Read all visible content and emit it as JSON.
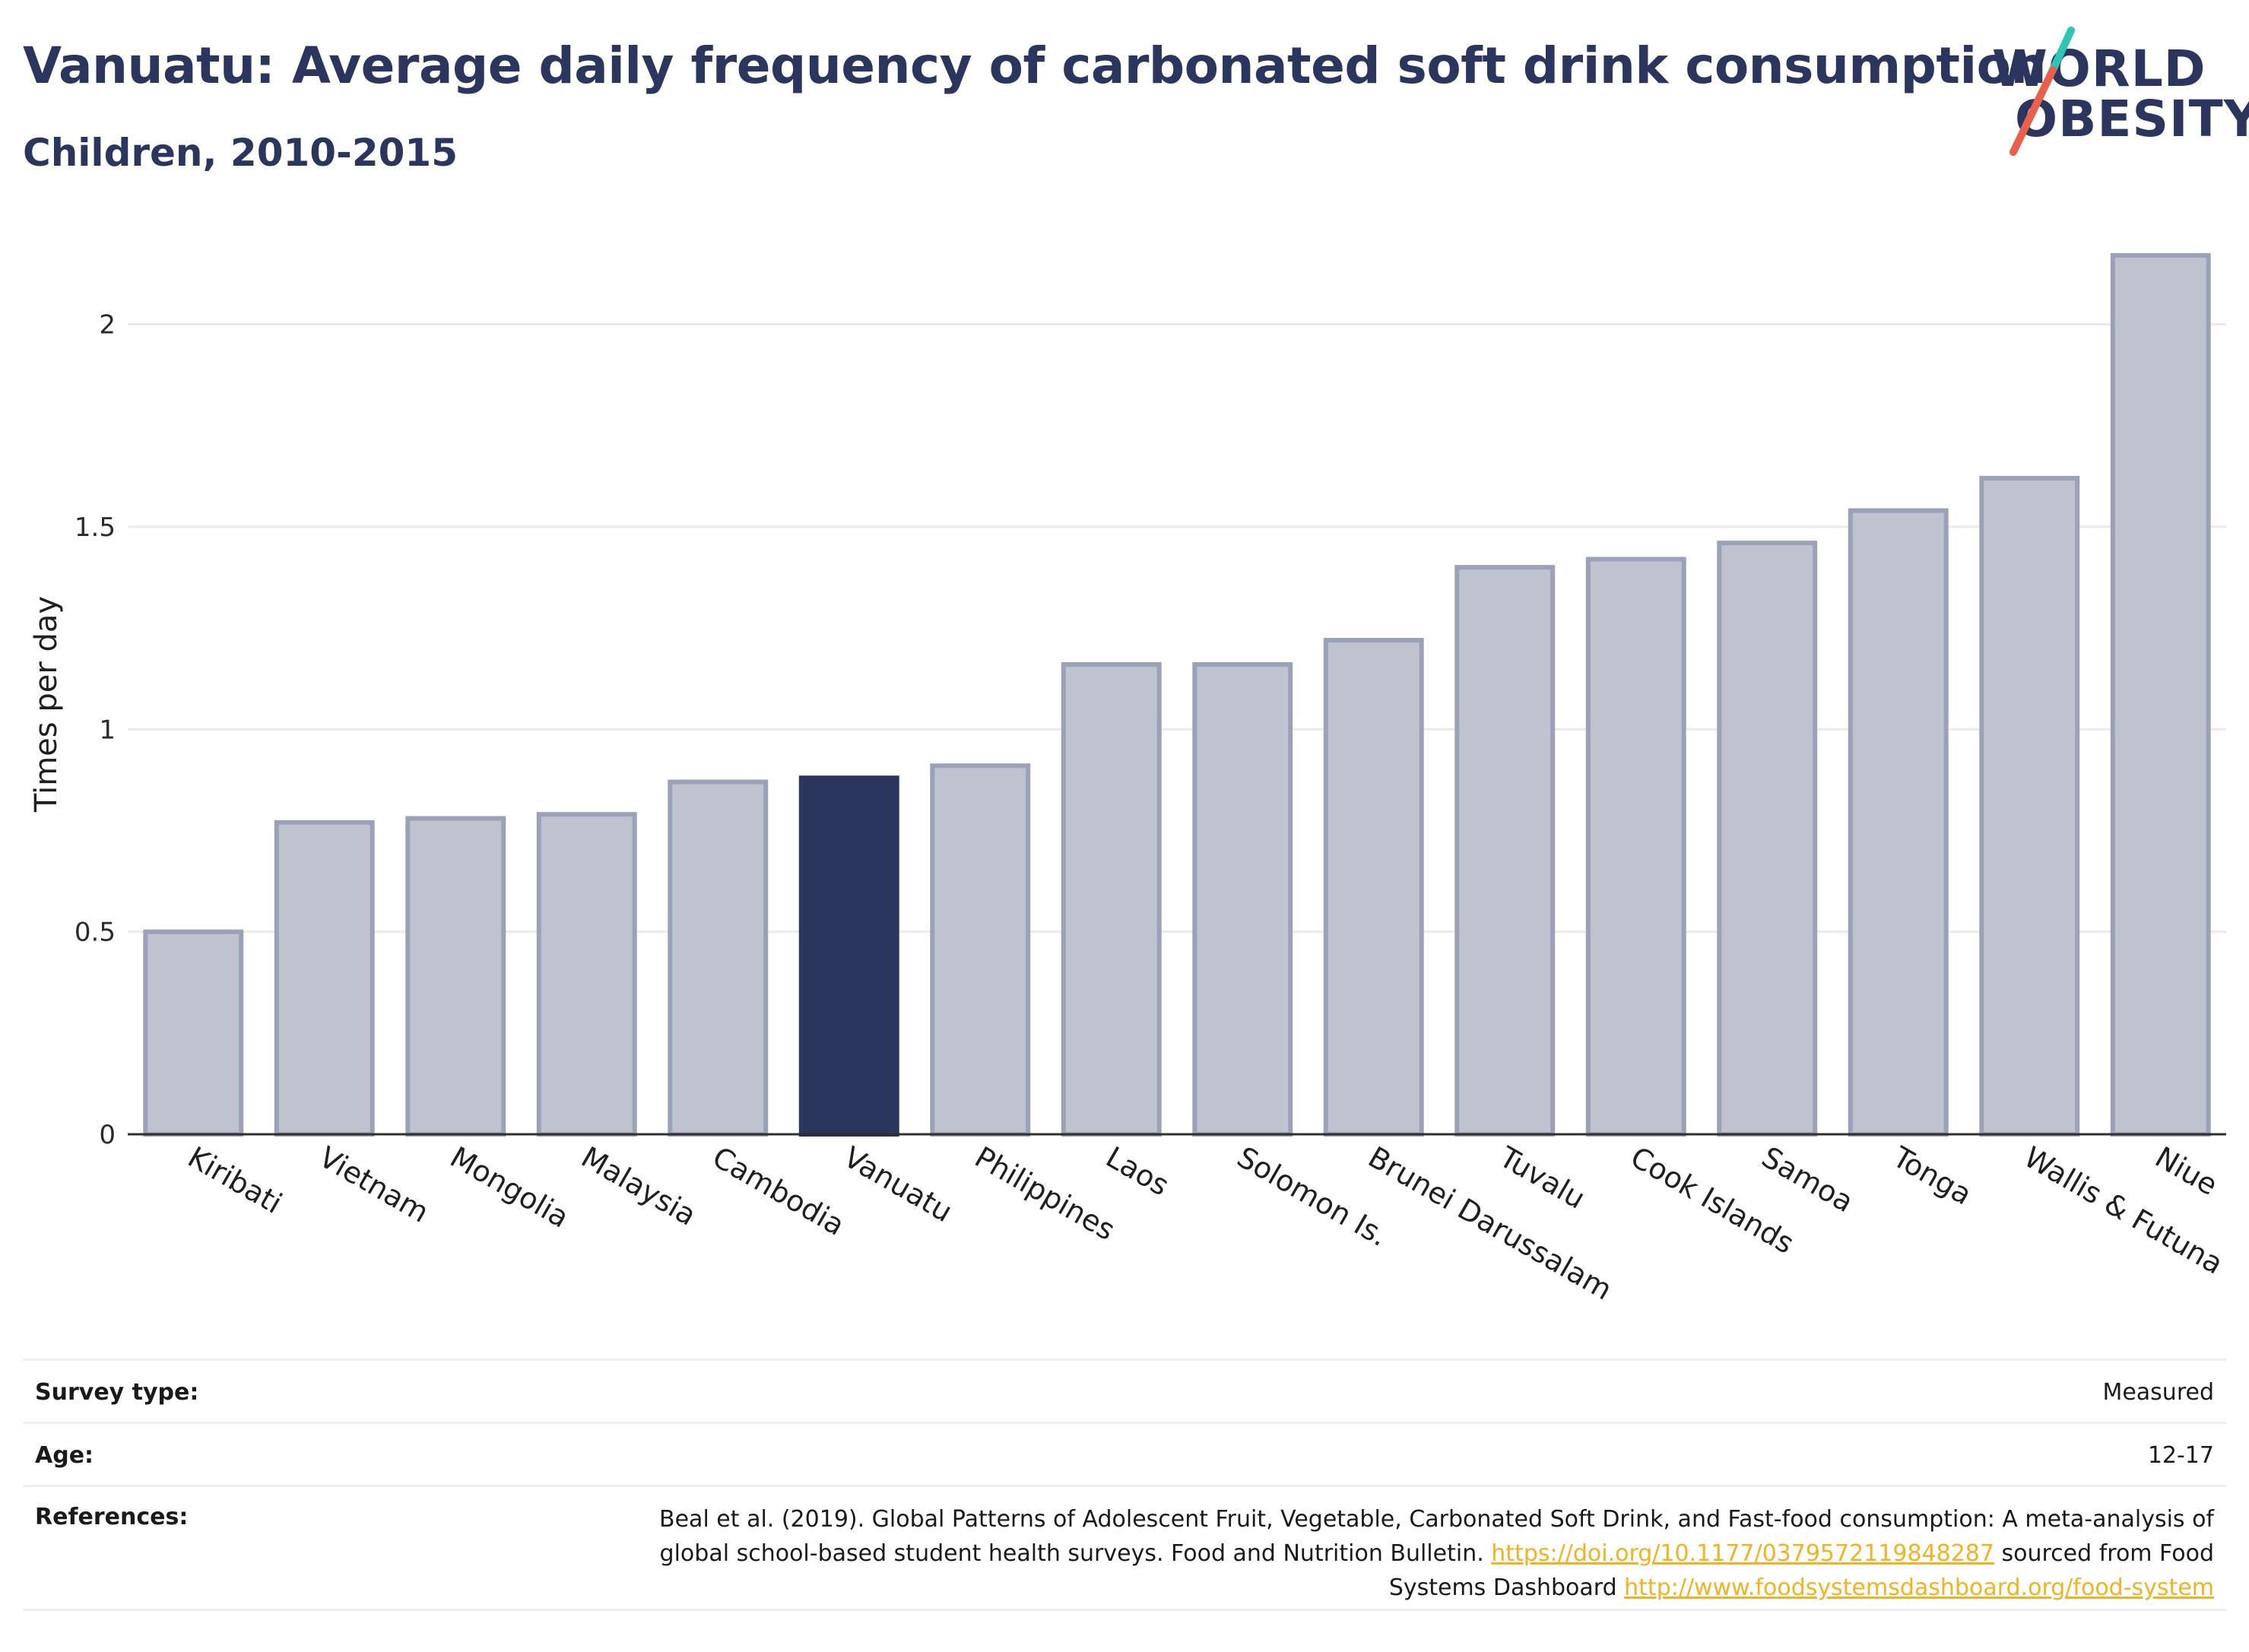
{
  "header": {
    "title": "Vanuatu: Average daily frequency of carbonated soft drink consumption",
    "subtitle": "Children, 2010-2015"
  },
  "logo": {
    "line1": "WORLD",
    "line2": "OBESITY",
    "slash_colors": [
      "#2ec4b6",
      "#e8604c"
    ]
  },
  "colors": {
    "highlight_bar": "#2b365e",
    "default_bar_fill": "#bfc3cf",
    "default_bar_stroke": "#9ba1b6",
    "grid": "#e9eaef",
    "axis": "#2f2f2f",
    "text": "#2b365e",
    "link": "#f0b323"
  },
  "chart_data": {
    "type": "bar",
    "categories": [
      "Kiribati",
      "Vietnam",
      "Mongolia",
      "Malaysia",
      "Cambodia",
      "Vanuatu",
      "Philippines",
      "Laos",
      "Solomon Is.",
      "Brunei Darussalam",
      "Tuvalu",
      "Cook Islands",
      "Samoa",
      "Tonga",
      "Wallis & Futuna",
      "Niue"
    ],
    "values": [
      0.5,
      0.77,
      0.78,
      0.79,
      0.87,
      0.88,
      0.91,
      1.16,
      1.16,
      1.22,
      1.4,
      1.42,
      1.46,
      1.54,
      1.62,
      2.17
    ],
    "highlight": "Vanuatu",
    "ylabel": "Times per day",
    "xlabel": "",
    "ylim": [
      0,
      2.2
    ],
    "yticks": [
      0,
      0.5,
      1,
      1.5,
      2
    ],
    "ytick_labels": [
      "0",
      "0.5",
      "1",
      "1.5",
      "2"
    ],
    "grid": true
  },
  "info": {
    "survey_label": "Survey type:",
    "survey_value": "Measured",
    "age_label": "Age:",
    "age_value": "12-17",
    "references_label": "References:",
    "ref_text_1": "Beal et al. (2019). Global Patterns of Adolescent Fruit, Vegetable, Carbonated Soft Drink, and Fast-food consumption: A meta-analysis of global school-based student health surveys. Food and Nutrition Bulletin. ",
    "ref_link_1": "https://doi.org/10.1177/0379572119848287",
    "ref_text_2": " sourced from Food Systems Dashboard ",
    "ref_link_2": "http://www.foodsystemsdashboard.org/food-system"
  }
}
